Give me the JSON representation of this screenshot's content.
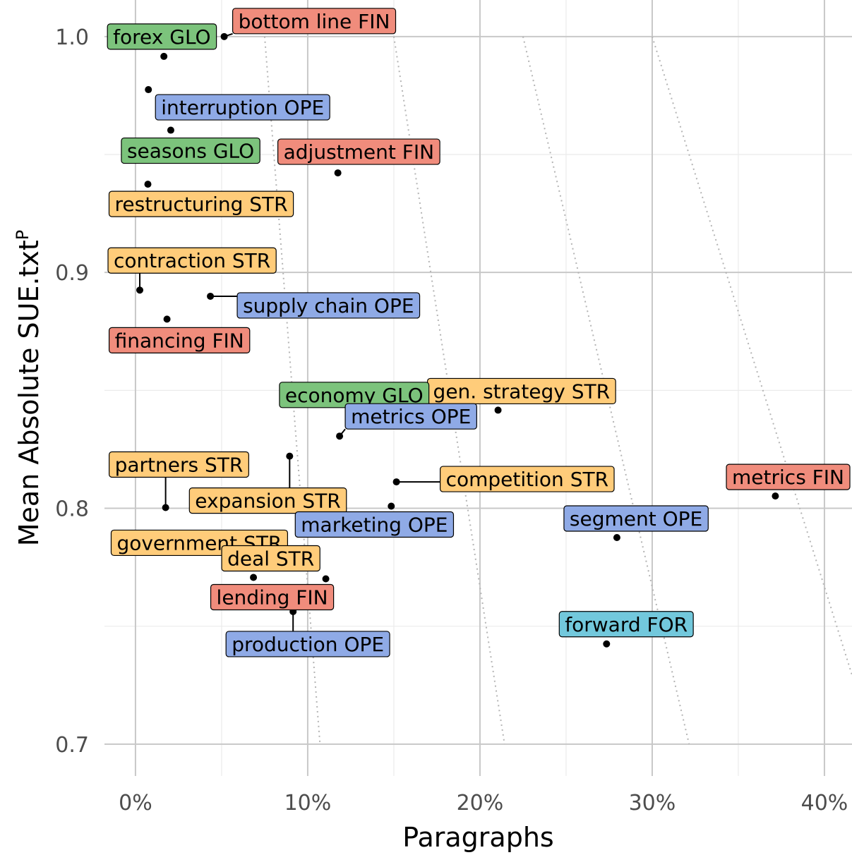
{
  "chart_data": {
    "type": "scatter",
    "xlabel": "Paragraphs",
    "ylabel": "Mean Absolute SUE.txt",
    "ylabel_superscript": "P",
    "xlim": [
      -0.018,
      0.416
    ],
    "ylim": [
      0.6865,
      1.0155
    ],
    "x_ticks": [
      {
        "value": 0.0,
        "label": "0%"
      },
      {
        "value": 0.1,
        "label": "10%"
      },
      {
        "value": 0.2,
        "label": "20%"
      },
      {
        "value": 0.3,
        "label": "30%"
      },
      {
        "value": 0.4,
        "label": "40%"
      }
    ],
    "y_ticks": [
      {
        "value": 0.7,
        "label": "0.7"
      },
      {
        "value": 0.8,
        "label": "0.8"
      },
      {
        "value": 0.9,
        "label": "0.9"
      },
      {
        "value": 1.0,
        "label": "1.0"
      }
    ],
    "grid": true,
    "category_colors": {
      "FIN": "#f08c7c",
      "GLO": "#7cc37c",
      "OPE": "#8faae6",
      "STR": "#ffcc7a",
      "FOR": "#72c8dc"
    },
    "points": [
      {
        "label": "forex GLO",
        "group": "GLO",
        "x": 0.0165,
        "y": 0.9916
      },
      {
        "label": "bottom line FIN",
        "group": "FIN",
        "x": 0.0515,
        "y": 1.0
      },
      {
        "label": "interruption OPE",
        "group": "OPE",
        "x": 0.0075,
        "y": 0.9775
      },
      {
        "label": "seasons GLO",
        "group": "GLO",
        "x": 0.0205,
        "y": 0.9603
      },
      {
        "label": "adjustment FIN",
        "group": "FIN",
        "x": 0.1175,
        "y": 0.9422
      },
      {
        "label": "restructuring STR",
        "group": "STR",
        "x": 0.0072,
        "y": 0.9374
      },
      {
        "label": "contraction STR",
        "group": "STR",
        "x": 0.0025,
        "y": 0.8925
      },
      {
        "label": "supply chain OPE",
        "group": "OPE",
        "x": 0.0435,
        "y": 0.8899
      },
      {
        "label": "financing FIN",
        "group": "FIN",
        "x": 0.0183,
        "y": 0.8802
      },
      {
        "label": "gen. strategy STR",
        "group": "STR",
        "x": 0.2105,
        "y": 0.8416
      },
      {
        "label": "economy GLO",
        "group": "GLO",
        "x": 0.1295,
        "y": 0.8355
      },
      {
        "label": "metrics OPE",
        "group": "OPE",
        "x": 0.1185,
        "y": 0.8306
      },
      {
        "label": "expansion STR",
        "group": "STR",
        "x": 0.0895,
        "y": 0.8221
      },
      {
        "label": "competition STR",
        "group": "STR",
        "x": 0.1515,
        "y": 0.8112
      },
      {
        "label": "metrics FIN",
        "group": "FIN",
        "x": 0.3715,
        "y": 0.8052
      },
      {
        "label": "partners STR",
        "group": "STR",
        "x": 0.0175,
        "y": 0.8003
      },
      {
        "label": "marketing OPE",
        "group": "OPE",
        "x": 0.1485,
        "y": 0.8009
      },
      {
        "label": "segment OPE",
        "group": "OPE",
        "x": 0.2795,
        "y": 0.7876
      },
      {
        "label": "government STR",
        "group": "STR",
        "x": 0.0535,
        "y": 0.7773
      },
      {
        "label": "deal STR",
        "group": "STR",
        "x": 0.0685,
        "y": 0.7707
      },
      {
        "label": "lending FIN",
        "group": "FIN",
        "x": 0.1105,
        "y": 0.7701
      },
      {
        "label": "production OPE",
        "group": "OPE",
        "x": 0.0915,
        "y": 0.7562
      },
      {
        "label": "forward FOR",
        "group": "FOR",
        "x": 0.2735,
        "y": 0.7425
      }
    ]
  }
}
